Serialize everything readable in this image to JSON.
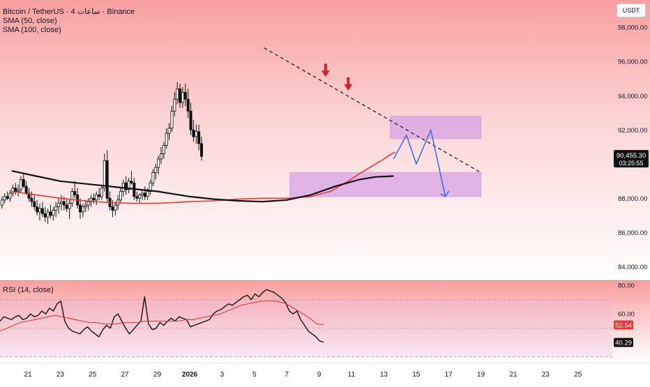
{
  "legend": {
    "symbol": "Bitcoin / TetherUS · 4 ساعات · Binance",
    "sma50": "SMA (50, close)",
    "sma100": "SMA (100, close)"
  },
  "currency_button": "USDT",
  "rsi_legend": "RSI (14, close)",
  "price_tags": {
    "last_price": "90,455.30",
    "countdown": "03:25:55"
  },
  "rsi_tags": {
    "rsi_ma_value": "52.54",
    "rsi_value": "40.29"
  },
  "colors": {
    "background_top": "#f8a3a3",
    "background_bottom": "#ffffff",
    "candle": "#111111",
    "sma50": "#e53935",
    "sma100": "#111111",
    "zone_fill": "#d7a2e6",
    "projection": "#3d6ef5",
    "arrow_down": "#d41f2f",
    "rsi_line": "#111111",
    "rsi_ma": "#e53935",
    "last_price_tag": "#111111",
    "rsi_ma_tag": "#e53935",
    "rsi_tag": "#111111"
  },
  "chart_data": [
    {
      "type": "candlestick",
      "title": "Bitcoin / TetherUS · 4 ساعات · Binance",
      "x_tick_labels": [
        "21",
        "23",
        "25",
        "27",
        "29",
        "2026",
        "3",
        "5",
        "7",
        "9",
        "11",
        "13",
        "15",
        "17",
        "19",
        "21",
        "23",
        "25"
      ],
      "y_tick_labels": [
        "98,000.00",
        "96,000.00",
        "94,000.00",
        "92,000.00",
        "88,000.00",
        "86,000.00",
        "84,000.00"
      ],
      "ylim": [
        83200,
        99600
      ],
      "grid": false,
      "candle_step_per_day": 6,
      "series": [
        {
          "name": "BTCUSDT",
          "ohlc": [
            [
              87600,
              88100,
              87400,
              87900
            ],
            [
              87900,
              88300,
              87700,
              88100
            ],
            [
              88100,
              88400,
              87900,
              88000
            ],
            [
              88000,
              88500,
              87800,
              88300
            ],
            [
              88300,
              88800,
              88100,
              88600
            ],
            [
              88600,
              88900,
              88200,
              88400
            ],
            [
              88400,
              88800,
              88100,
              88500
            ],
            [
              88500,
              89300,
              88300,
              89100
            ],
            [
              89100,
              89500,
              88600,
              88700
            ],
            [
              88700,
              89000,
              88200,
              88300
            ],
            [
              88300,
              88600,
              87800,
              88000
            ],
            [
              88000,
              88400,
              87500,
              87800
            ],
            [
              87800,
              88200,
              87300,
              87500
            ],
            [
              87500,
              87900,
              87000,
              87200
            ],
            [
              87200,
              87700,
              86700,
              87400
            ],
            [
              87400,
              87800,
              86900,
              87100
            ],
            [
              87100,
              87500,
              86600,
              86900
            ],
            [
              86900,
              87400,
              86500,
              87200
            ],
            [
              87200,
              87600,
              86800,
              87000
            ],
            [
              87000,
              87500,
              86700,
              87300
            ],
            [
              87300,
              87800,
              86900,
              87500
            ],
            [
              87500,
              88000,
              87100,
              87700
            ],
            [
              87700,
              88200,
              87300,
              87800
            ],
            [
              87800,
              88100,
              87300,
              87600
            ],
            [
              87600,
              88000,
              87200,
              87400
            ],
            [
              87400,
              87900,
              86800,
              87700
            ],
            [
              87700,
              88600,
              87500,
              88400
            ],
            [
              88400,
              89000,
              88000,
              88200
            ],
            [
              88200,
              88600,
              87400,
              87600
            ],
            [
              87600,
              88000,
              86800,
              87200
            ],
            [
              87200,
              87700,
              86900,
              87500
            ],
            [
              87500,
              87900,
              87200,
              87600
            ],
            [
              87600,
              88000,
              87300,
              87800
            ],
            [
              87800,
              88200,
              87500,
              88000
            ],
            [
              88000,
              88300,
              87700,
              87900
            ],
            [
              87900,
              88400,
              87600,
              88200
            ],
            [
              88200,
              88600,
              87900,
              88100
            ],
            [
              88100,
              88800,
              87900,
              88600
            ],
            [
              88600,
              90600,
              88400,
              90200
            ],
            [
              90200,
              90800,
              87800,
              88000
            ],
            [
              88000,
              88400,
              87300,
              87500
            ],
            [
              87500,
              87900,
              86900,
              87300
            ],
            [
              87300,
              87800,
              87000,
              87600
            ],
            [
              87600,
              88200,
              87300,
              87900
            ],
            [
              87900,
              88600,
              87700,
              88400
            ],
            [
              88400,
              89100,
              88100,
              88900
            ],
            [
              88900,
              89300,
              88200,
              88500
            ],
            [
              88500,
              89200,
              88300,
              89000
            ],
            [
              89000,
              89600,
              88800,
              88900
            ],
            [
              88900,
              89200,
              87900,
              88100
            ],
            [
              88100,
              88400,
              87800,
              88000
            ],
            [
              88000,
              88300,
              87700,
              88200
            ],
            [
              88200,
              88500,
              87900,
              88300
            ],
            [
              88300,
              88700,
              87900,
              88100
            ],
            [
              88100,
              88600,
              87900,
              88400
            ],
            [
              88400,
              89100,
              88200,
              88900
            ],
            [
              88900,
              89700,
              88700,
              89500
            ],
            [
              89500,
              90000,
              89100,
              89800
            ],
            [
              89800,
              90500,
              89400,
              90300
            ],
            [
              90300,
              91000,
              90000,
              90600
            ],
            [
              90600,
              91300,
              90300,
              91100
            ],
            [
              91100,
              92100,
              90900,
              91800
            ],
            [
              91800,
              92400,
              91400,
              92100
            ],
            [
              92100,
              93400,
              91900,
              93100
            ],
            [
              93100,
              94200,
              92800,
              93800
            ],
            [
              93800,
              94800,
              93500,
              94400
            ],
            [
              94400,
              94700,
              93300,
              93600
            ],
            [
              93600,
              94500,
              93300,
              94200
            ],
            [
              94200,
              94700,
              93400,
              93800
            ],
            [
              93800,
              94400,
              92700,
              93100
            ],
            [
              93100,
              93600,
              91700,
              92000
            ],
            [
              92000,
              92600,
              91300,
              91600
            ],
            [
              91600,
              92300,
              91200,
              91900
            ],
            [
              91900,
              92300,
              90800,
              91200
            ],
            [
              91200,
              91600,
              90200,
              90455
            ]
          ]
        },
        {
          "name": "SMA (50, close)",
          "x_days": [
            -1.0,
            2.0,
            3.5,
            5.0,
            6.5,
            8.0,
            10.0,
            11.5,
            13.0,
            14.5,
            16.0,
            17.5,
            18.7,
            19.8,
            20.6,
            21.3,
            22.0,
            22.4,
            22.7
          ],
          "values": [
            88400,
            88000,
            87850,
            87750,
            87700,
            87700,
            87800,
            87850,
            87950,
            88000,
            88000,
            88100,
            88400,
            89000,
            89500,
            89900,
            90300,
            90550,
            90700
          ]
        },
        {
          "name": "SMA (100, close)",
          "x_days": [
            -1.0,
            0.5,
            2.0,
            4.0,
            6.0,
            8.0,
            10.0,
            11.5,
            13.0,
            14.5,
            16.0,
            17.5,
            19.0,
            20.5,
            21.5,
            22.6
          ],
          "values": [
            89600,
            89300,
            89000,
            88800,
            88600,
            88400,
            88100,
            87950,
            87850,
            87800,
            87900,
            88200,
            88700,
            89100,
            89250,
            89300
          ]
        }
      ],
      "annotations": {
        "trendline": {
          "x_days": [
            14.6,
            28.0
          ],
          "values": [
            96800,
            89500
          ]
        },
        "resistance_zone": {
          "x_days": [
            22.4,
            28.0
          ],
          "values": [
            91500,
            92800
          ]
        },
        "support_zone": {
          "x_days": [
            16.2,
            28.0
          ],
          "values": [
            88100,
            89500
          ]
        },
        "projection_path": {
          "x_days": [
            22.6,
            23.4,
            24.0,
            24.9,
            25.8
          ],
          "values": [
            90300,
            91700,
            90000,
            92000,
            88100
          ]
        },
        "down_arrows": {
          "x_days": [
            18.4,
            19.8
          ],
          "values": [
            95100,
            94300
          ]
        }
      }
    },
    {
      "type": "line",
      "title": "RSI (14, close)",
      "y_tick_labels": [
        "80.00",
        "60.00"
      ],
      "ylim": [
        26,
        83
      ],
      "reference_lines": [
        70,
        50,
        30
      ],
      "series": [
        {
          "name": "RSI (14, close)",
          "values": [
            55,
            58,
            57,
            56,
            58,
            59,
            56,
            57,
            60,
            58,
            59,
            62,
            60,
            64,
            62,
            67,
            69,
            55,
            50,
            48,
            47,
            46,
            49,
            51,
            48,
            46,
            44,
            49,
            52,
            50,
            58,
            60,
            55,
            50,
            46,
            49,
            52,
            55,
            72,
            53,
            49,
            50,
            54,
            52,
            55,
            57,
            55,
            58,
            57,
            56,
            51,
            52,
            53,
            54,
            55,
            56,
            60,
            62,
            63,
            65,
            67,
            66,
            68,
            70,
            72,
            73,
            70,
            74,
            72,
            75,
            77,
            76,
            75,
            73,
            71,
            68,
            62,
            60,
            62,
            56,
            52,
            48,
            46,
            44,
            41,
            40.29
          ]
        },
        {
          "name": "RSI MA",
          "values": [
            48,
            50,
            52,
            54,
            55,
            56,
            57,
            58,
            59,
            58,
            57,
            56,
            55,
            54,
            54,
            53,
            53,
            53,
            54,
            54,
            54,
            55,
            55,
            55,
            55,
            55,
            55,
            56,
            56,
            57,
            58,
            59,
            60,
            62,
            64,
            66,
            67,
            68,
            69,
            69,
            69,
            68,
            66,
            63,
            60,
            57,
            53,
            52.54
          ]
        }
      ]
    }
  ]
}
